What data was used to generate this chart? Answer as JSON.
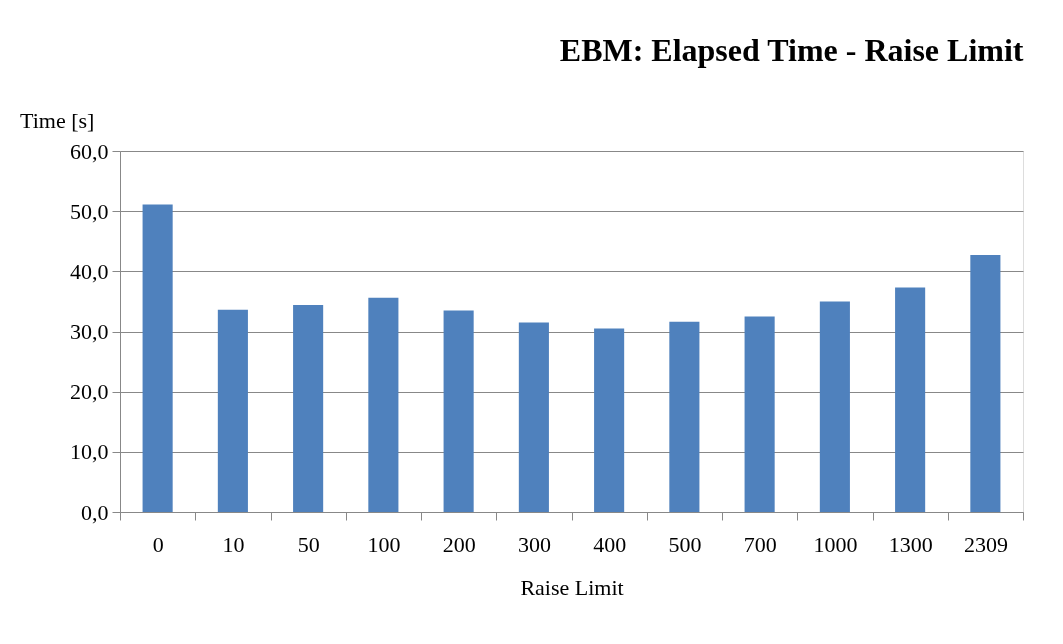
{
  "chart_data": {
    "type": "bar",
    "title": "EBM: Elapsed Time - Raise Limit",
    "xlabel": "Raise Limit",
    "ylabel": "Time [s]",
    "categories": [
      "0",
      "10",
      "50",
      "100",
      "200",
      "300",
      "400",
      "500",
      "700",
      "1000",
      "1300",
      "2309"
    ],
    "values": [
      51.1,
      33.6,
      34.4,
      35.6,
      33.5,
      31.5,
      30.5,
      31.6,
      32.5,
      35.0,
      37.3,
      42.7
    ],
    "color": "#4f81bd",
    "ylim": [
      0,
      60
    ],
    "yticks": [
      {
        "value": 0,
        "label": "0,0"
      },
      {
        "value": 10,
        "label": "10,0"
      },
      {
        "value": 20,
        "label": "20,0"
      },
      {
        "value": 30,
        "label": "30,0"
      },
      {
        "value": 40,
        "label": "40,0"
      },
      {
        "value": 50,
        "label": "50,0"
      },
      {
        "value": 60,
        "label": "60,0"
      }
    ],
    "grid": "y"
  }
}
